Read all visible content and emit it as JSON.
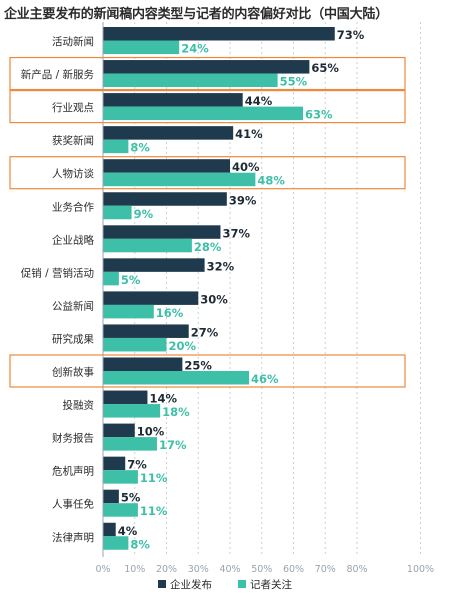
{
  "chart_data": {
    "type": "bar",
    "orientation": "horizontal",
    "title": "企业主要发布的新闻稿内容类型与记者的内容偏好对比（中国大陆）",
    "xlim": [
      0,
      100
    ],
    "x_ticks": [
      "0%",
      "10%",
      "20%",
      "30%",
      "40%",
      "50%",
      "60%",
      "70%",
      "80%",
      "100%"
    ],
    "grid": "vertical dashed",
    "legend_position": "bottom",
    "categories": [
      "活动新闻",
      "新产品 / 新服务",
      "行业观点",
      "获奖新闻",
      "人物访谈",
      "业务合作",
      "企业战略",
      "促销 / 营销活动",
      "公益新闻",
      "研究成果",
      "创新故事",
      "投融资",
      "财务报告",
      "危机声明",
      "人事任免",
      "法律声明"
    ],
    "highlighted_categories": [
      "新产品 / 新服务",
      "行业观点",
      "人物访谈",
      "创新故事"
    ],
    "series": [
      {
        "name": "企业发布",
        "color": "#1e3a4c",
        "values": [
          73,
          65,
          44,
          41,
          40,
          39,
          37,
          32,
          30,
          27,
          25,
          14,
          10,
          7,
          5,
          4
        ],
        "labels": [
          "73%",
          "65%",
          "44%",
          "41%",
          "40%",
          "39%",
          "37%",
          "32%",
          "30%",
          "27%",
          "25%",
          "14%",
          "10%",
          "7%",
          "5%",
          "4%"
        ]
      },
      {
        "name": "记者关注",
        "color": "#3ec0a8",
        "values": [
          24,
          55,
          63,
          8,
          48,
          9,
          28,
          5,
          16,
          20,
          46,
          18,
          17,
          11,
          11,
          8
        ],
        "labels": [
          "24%",
          "55%",
          "63%",
          "8%",
          "48%",
          "9%",
          "28%",
          "5%",
          "16%",
          "20%",
          "46%",
          "18%",
          "17%",
          "11%",
          "11%",
          "8%"
        ]
      }
    ],
    "highlight_color": "#f0883a",
    "axis_color": "#9aa4ad",
    "label_color": "#2b2b2b"
  }
}
